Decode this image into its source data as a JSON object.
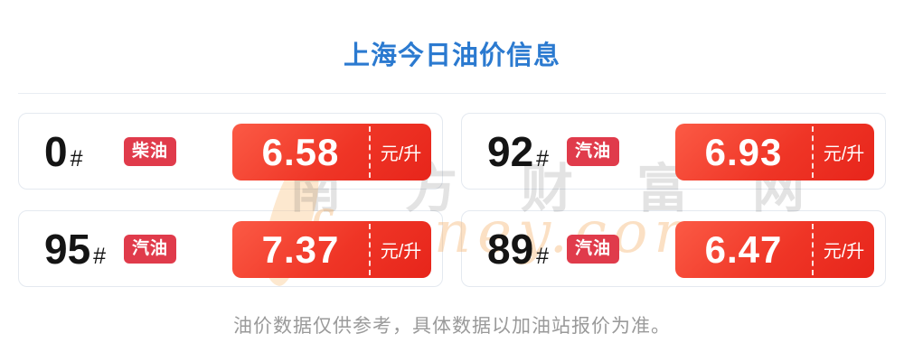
{
  "page": {
    "title": "上海今日油价信息",
    "footer_note": "油价数据仅供参考，具体数据以加油站报价为准。"
  },
  "watermark": {
    "site_name_cn": "南方财富网",
    "site_name_en": "fmoney.com"
  },
  "colors": {
    "title_blue": "#2b7ad0",
    "price_box_gradient_start": "#fb5a45",
    "price_box_gradient_end": "#e7251b",
    "badge_red": "#e03b4b",
    "card_border": "#e4e9f0",
    "footer_gray": "#9a9a9a",
    "watermark_gray": "rgba(70,70,70,0.15)",
    "watermark_orange": "rgba(246,178,107,0.40)"
  },
  "cards": [
    {
      "grade": "0",
      "hash": "#",
      "fuel_type": "柴油",
      "price": "6.58",
      "unit": "元/升"
    },
    {
      "grade": "92",
      "hash": "#",
      "fuel_type": "汽油",
      "price": "6.93",
      "unit": "元/升"
    },
    {
      "grade": "95",
      "hash": "#",
      "fuel_type": "汽油",
      "price": "7.37",
      "unit": "元/升"
    },
    {
      "grade": "89",
      "hash": "#",
      "fuel_type": "汽油",
      "price": "6.47",
      "unit": "元/升"
    }
  ]
}
